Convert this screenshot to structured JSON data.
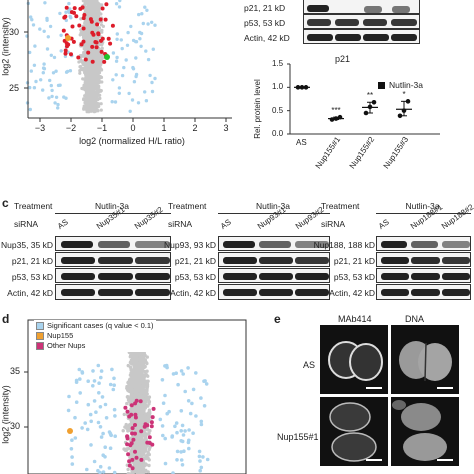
{
  "panel_letters": {
    "c": "c",
    "d": "d",
    "e": "e"
  },
  "panel_a": {
    "ylabel": "log2 (intensity)",
    "xlabel": "log2 (normalized H/L ratio)",
    "yticks": [
      "30",
      "25"
    ],
    "xticks": [
      "−3",
      "−2",
      "−1",
      "0",
      "1",
      "2",
      "3"
    ]
  },
  "panel_b": {
    "blot_rows": [
      "p21, 21 kD",
      "p53, 53 kD",
      "Actin, 42 kD"
    ],
    "chart_title": "p21",
    "legend": "Nutlin-3a",
    "ylabel": "Rel. protein level",
    "yticks": [
      "1.5",
      "1.0",
      "0.5",
      "0.0"
    ],
    "categories": [
      "AS",
      "Nup155#1",
      "Nup155#2",
      "Nup155#3"
    ],
    "significance": [
      "",
      "***",
      "**",
      "*"
    ]
  },
  "panel_c": {
    "treatment_label": "Treatment",
    "treatment_value": "Nutlin-3a",
    "sirna_label": "siRNA",
    "groups": [
      {
        "lanes": [
          "AS",
          "Nup35#1",
          "Nup35#2"
        ],
        "rows": [
          "Nup35, 35 kD",
          "p21, 21 kD",
          "p53, 53 kD",
          "Actin, 42 kD"
        ]
      },
      {
        "lanes": [
          "AS",
          "Nup93#1",
          "Nup93#2"
        ],
        "rows": [
          "Nup93, 93 kD",
          "p21, 21 kD",
          "p53, 53 kD",
          "Actin, 42 kD"
        ]
      },
      {
        "lanes": [
          "AS",
          "Nup188#1",
          "Nup188#2"
        ],
        "rows": [
          "Nup188, 188 kD",
          "p21, 21 kD",
          "p53, 53 kD",
          "Actin, 42 kD"
        ]
      }
    ]
  },
  "panel_d": {
    "legend": [
      "Significant cases (q value < 0.1)",
      "Nup155",
      "Other Nups"
    ],
    "legend_colors": [
      "#a9d3ee",
      "#f0a030",
      "#cc3377"
    ],
    "ylabel": "log2 (intensity)",
    "yticks": [
      "35",
      "30"
    ]
  },
  "panel_e": {
    "columns": [
      "MAb414",
      "DNA"
    ],
    "rows": [
      "AS",
      "Nup155#1"
    ]
  },
  "chart_data": {
    "type": "scatter",
    "title": "p21",
    "ylabel": "Rel. protein level",
    "categories": [
      "AS",
      "Nup155#1",
      "Nup155#2",
      "Nup155#3"
    ],
    "ylim": [
      0,
      1.5
    ],
    "series": [
      {
        "name": "Nutlin-3a",
        "means": [
          1.0,
          0.33,
          0.57,
          0.53
        ],
        "points": [
          [
            1.0,
            1.0,
            1.0
          ],
          [
            0.31,
            0.33,
            0.36
          ],
          [
            0.45,
            0.58,
            0.68
          ],
          [
            0.39,
            0.5,
            0.7
          ]
        ]
      }
    ]
  }
}
